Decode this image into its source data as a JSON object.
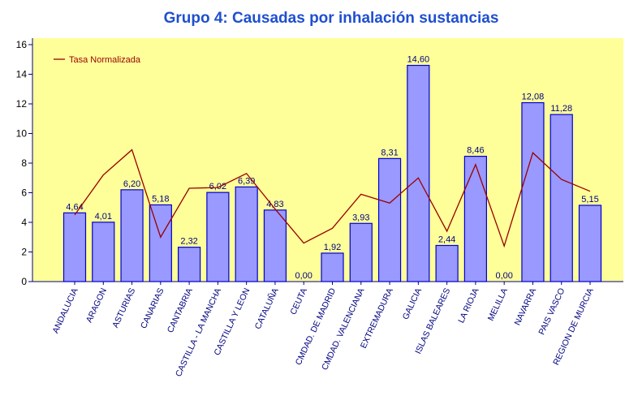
{
  "chart_data": {
    "type": "bar",
    "title": "Grupo 4: Causadas por inhalación sustancias",
    "categories": [
      "ANDALUCIA",
      "ARAGON",
      "ASTURIAS",
      "CANARIAS",
      "CANTABRIA",
      "CASTILLA - LA MANCHA",
      "CASTILLA Y LEON",
      "CATALUÑA",
      "CEUTA",
      "CMDAD. DE MADRID",
      "CMDAD. VALENCIANA",
      "EXTREMADURA",
      "GALICIA",
      "ISLAS BALEARES",
      "LA RIOJA",
      "MELILLA",
      "NAVARRA",
      "PAIS VASCO",
      "REGION DE MURCIA"
    ],
    "values": [
      4.64,
      4.01,
      6.2,
      5.18,
      2.32,
      6.02,
      6.39,
      4.83,
      0.0,
      1.92,
      3.93,
      8.31,
      14.6,
      2.44,
      8.46,
      0.0,
      12.08,
      11.28,
      5.15
    ],
    "value_labels": [
      "4,64",
      "4,01",
      "6,20",
      "5,18",
      "2,32",
      "6,02",
      "6,39",
      "4,83",
      "0,00",
      "1,92",
      "3,93",
      "8,31",
      "14,60",
      "2,44",
      "8,46",
      "0,00",
      "12,08",
      "11,28",
      "5,15"
    ],
    "color": "#9999ff",
    "series": [
      {
        "name": "Tasa Normalizada",
        "color": "#990000",
        "type": "line",
        "values": [
          4.5,
          7.2,
          8.9,
          3.0,
          6.3,
          6.35,
          7.3,
          4.9,
          2.6,
          3.6,
          5.9,
          5.3,
          7.0,
          3.4,
          7.9,
          2.4,
          8.7,
          6.9,
          6.1
        ]
      }
    ],
    "ylim": [
      0,
      16
    ],
    "yticks": [
      0,
      2,
      4,
      6,
      8,
      10,
      12,
      14,
      16
    ],
    "legend": "top-left",
    "background": "#ffff99"
  }
}
